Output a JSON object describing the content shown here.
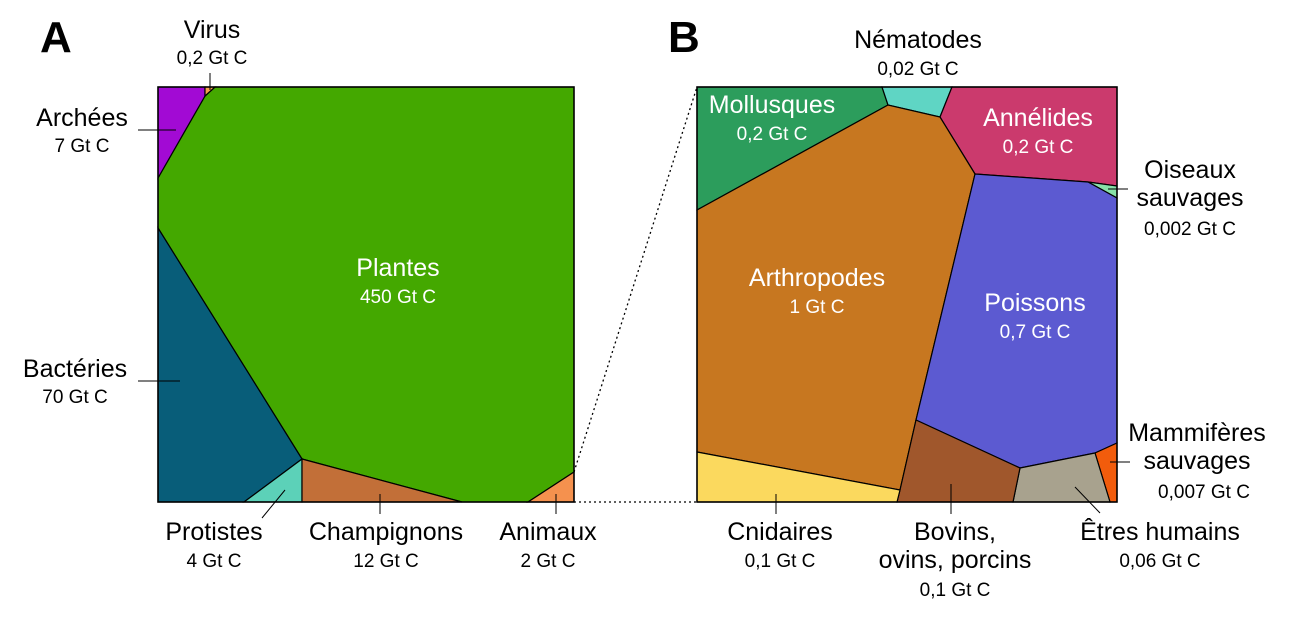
{
  "chart_data": [
    {
      "type": "voronoi-treemap",
      "panel": "A",
      "unit": "Gt C",
      "cells": [
        {
          "name": "Plantes",
          "value": 450,
          "value_label": "450 Gt C",
          "color": "#44a800"
        },
        {
          "name": "Bactéries",
          "value": 70,
          "value_label": "70 Gt C",
          "color": "#085d79"
        },
        {
          "name": "Champignons",
          "value": 12,
          "value_label": "12 Gt C",
          "color": "#c26f38"
        },
        {
          "name": "Archées",
          "value": 7,
          "value_label": "7 Gt C",
          "color": "#a20ad4"
        },
        {
          "name": "Protistes",
          "value": 4,
          "value_label": "4 Gt C",
          "color": "#5cd1b8"
        },
        {
          "name": "Animaux",
          "value": 2,
          "value_label": "2 Gt C",
          "color": "#f5914e"
        },
        {
          "name": "Virus",
          "value": 0.2,
          "value_label": "0,2 Gt C",
          "color": "#f4a04e"
        }
      ]
    },
    {
      "type": "voronoi-treemap",
      "panel": "B",
      "unit": "Gt C",
      "detail_of": "Animaux",
      "cells": [
        {
          "name": "Arthropodes",
          "value": 1,
          "value_label": "1 Gt C",
          "color": "#c77720"
        },
        {
          "name": "Poissons",
          "value": 0.7,
          "value_label": "0,7 Gt C",
          "color": "#5c5ad1"
        },
        {
          "name": "Mollusques",
          "value": 0.2,
          "value_label": "0,2 Gt C",
          "color": "#2c9d5c"
        },
        {
          "name": "Annélides",
          "value": 0.2,
          "value_label": "0,2 Gt C",
          "color": "#cb3a6d"
        },
        {
          "name": "Cnidaires",
          "value": 0.1,
          "value_label": "0,1 Gt C",
          "color": "#fbd95e"
        },
        {
          "name": "Bovins, ovins, porcins",
          "value": 0.1,
          "value_label": "0,1 Gt C",
          "color": "#a0572c"
        },
        {
          "name": "Êtres humains",
          "value": 0.06,
          "value_label": "0,06 Gt C",
          "color": "#a8a28e"
        },
        {
          "name": "Nématodes",
          "value": 0.02,
          "value_label": "0,02 Gt C",
          "color": "#5fd5c4"
        },
        {
          "name": "Mammifères sauvages",
          "value": 0.007,
          "value_label": "0,007 Gt C",
          "color": "#f25c0c"
        },
        {
          "name": "Oiseaux sauvages",
          "value": 0.002,
          "value_label": "0,002 Gt C",
          "color": "#88e0a8"
        }
      ]
    }
  ],
  "panels": {
    "a": "A",
    "b": "B"
  },
  "labels": {
    "plantes": {
      "name": "Plantes",
      "value": "450 Gt C"
    },
    "bacteries": {
      "name": "Bactéries",
      "value": "70 Gt C"
    },
    "champignons": {
      "name": "Champignons",
      "value": "12 Gt C"
    },
    "archees": {
      "name": "Archées",
      "value": "7 Gt C"
    },
    "protistes": {
      "name": "Protistes",
      "value": "4 Gt C"
    },
    "animaux": {
      "name": "Animaux",
      "value": "2 Gt C"
    },
    "virus": {
      "name": "Virus",
      "value": "0,2 Gt C"
    },
    "arthropodes": {
      "name": "Arthropodes",
      "value": "1 Gt C"
    },
    "poissons": {
      "name": "Poissons",
      "value": "0,7 Gt C"
    },
    "mollusques": {
      "name": "Mollusques",
      "value": "0,2 Gt C"
    },
    "annelides": {
      "name": "Annélides",
      "value": "0,2 Gt C"
    },
    "cnidaires": {
      "name": "Cnidaires",
      "value": "0,1 Gt C"
    },
    "bovins": {
      "name_line1": "Bovins,",
      "name_line2": "ovins, porcins",
      "value": "0,1 Gt C"
    },
    "humains": {
      "name": "Êtres humains",
      "value": "0,06 Gt C"
    },
    "nematodes": {
      "name": "Nématodes",
      "value": "0,02 Gt C"
    },
    "mammiferes": {
      "name_line1": "Mammifères",
      "name_line2": "sauvages",
      "value": "0,007 Gt C"
    },
    "oiseaux": {
      "name_line1": "Oiseaux",
      "name_line2": "sauvages",
      "value": "0,002 Gt C"
    }
  }
}
